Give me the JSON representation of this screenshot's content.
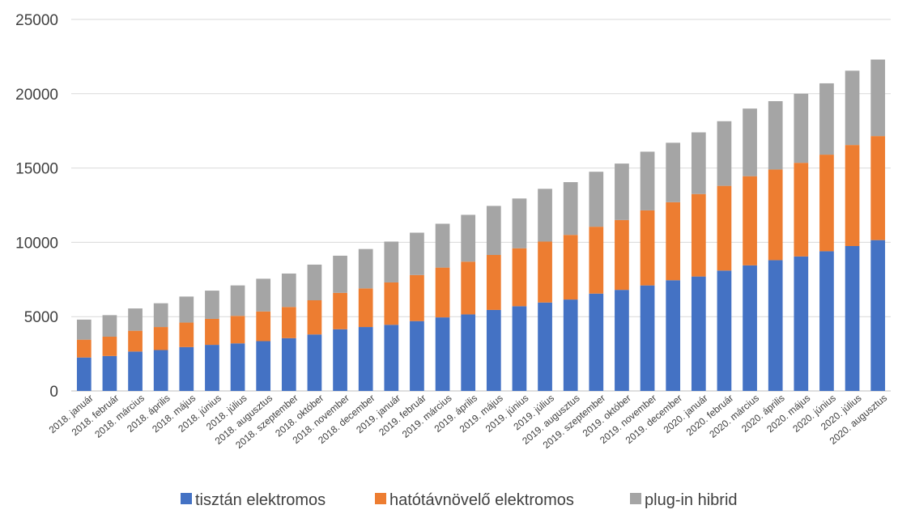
{
  "chart_data": {
    "type": "bar",
    "stacked": true,
    "categories": [
      "2018. január",
      "2018. február",
      "2018. március",
      "2018. április",
      "2018. május",
      "2018. június",
      "2018. július",
      "2018. augusztus",
      "2018. szeptember",
      "2018. október",
      "2018. november",
      "2018. december",
      "2019. január",
      "2019. február",
      "2019. március",
      "2019. április",
      "2019. május",
      "2019. június",
      "2019. július",
      "2019. augusztus",
      "2019. szeptember",
      "2019. október",
      "2019. november",
      "2019. december",
      "2020. január",
      "2020. február",
      "2020. március",
      "2020. április",
      "2020. május",
      "2020. június",
      "2020. július",
      "2020. augusztus"
    ],
    "series": [
      {
        "name": "tisztán elektromos",
        "color": "#4472C4",
        "values": [
          2250,
          2350,
          2650,
          2750,
          2950,
          3100,
          3200,
          3350,
          3550,
          3800,
          4150,
          4300,
          4450,
          4700,
          4950,
          5150,
          5450,
          5700,
          5950,
          6150,
          6550,
          6800,
          7100,
          7450,
          7700,
          8100,
          8450,
          8800,
          9050,
          9400,
          9750,
          10150
        ]
      },
      {
        "name": "hatótávnövelő elektromos",
        "color": "#ED7D31",
        "values": [
          1200,
          1300,
          1400,
          1550,
          1650,
          1750,
          1850,
          2000,
          2100,
          2300,
          2450,
          2600,
          2850,
          3100,
          3350,
          3550,
          3700,
          3900,
          4100,
          4350,
          4500,
          4700,
          5050,
          5250,
          5550,
          5700,
          6000,
          6100,
          6300,
          6500,
          6800,
          7000
        ]
      },
      {
        "name": "plug-in hibrid",
        "color": "#A5A5A5",
        "values": [
          1350,
          1450,
          1500,
          1600,
          1750,
          1900,
          2050,
          2200,
          2250,
          2400,
          2500,
          2650,
          2750,
          2850,
          2950,
          3150,
          3300,
          3350,
          3550,
          3550,
          3700,
          3800,
          3950,
          4000,
          4150,
          4350,
          4550,
          4600,
          4650,
          4800,
          5000,
          5150
        ]
      }
    ],
    "yticks": [
      "0",
      "5000",
      "10000",
      "15000",
      "20000",
      "25000"
    ],
    "ylim": [
      0,
      25000
    ],
    "grid": true,
    "legend": "bottom"
  }
}
